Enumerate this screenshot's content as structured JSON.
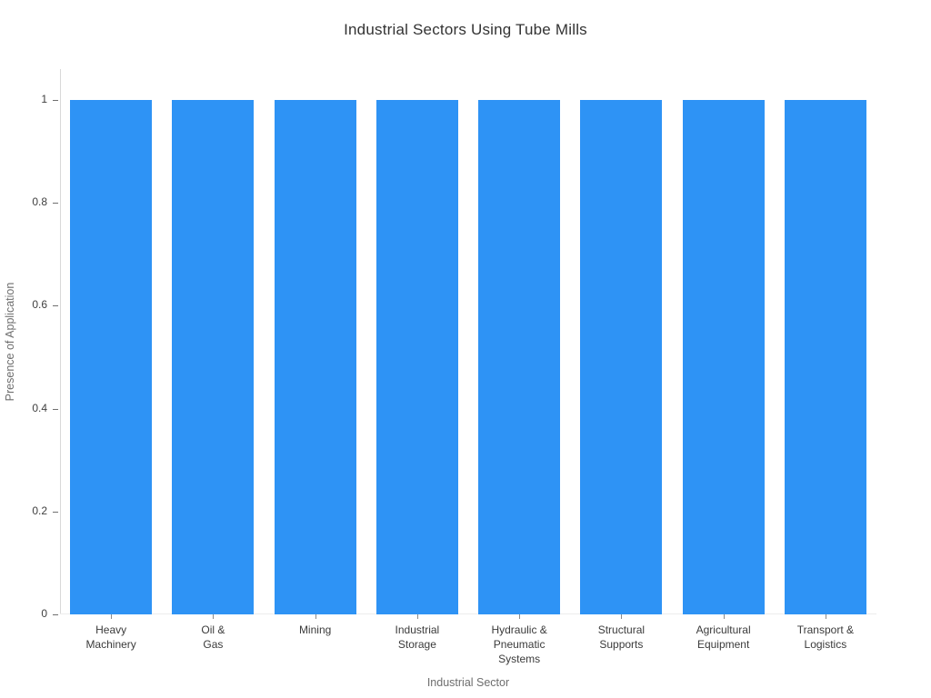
{
  "title": "Industrial Sectors Using Tube Mills",
  "chart_data": {
    "type": "bar",
    "title": "Industrial Sectors Using Tube Mills",
    "categories": [
      "Heavy\nMachinery",
      "Oil &\nGas",
      "Mining",
      "Industrial\nStorage",
      "Hydraulic &\nPneumatic\nSystems",
      "Structural\nSupports",
      "Agricultural\nEquipment",
      "Transport &\nLogistics"
    ],
    "categories_full": [
      "Heavy Machinery",
      "Oil & Gas",
      "Mining",
      "Industrial Storage",
      "Hydraulic & Pneumatic Systems",
      "Structural Supports",
      "Agricultural Equipment",
      "Transport & Logistics"
    ],
    "values": [
      1,
      1,
      1,
      1,
      1,
      1,
      1,
      1
    ],
    "xlabel": "Industrial Sector",
    "ylabel": "Presence of Application",
    "ylim": [
      0,
      1.06
    ],
    "yticks": [
      "0",
      "0.2",
      "0.4",
      "0.6",
      "0.8",
      "1"
    ],
    "ytick_values": [
      0,
      0.2,
      0.4,
      0.6,
      0.8,
      1
    ],
    "bar_color": "#2e93f5",
    "grid": false,
    "legend": "none",
    "background": "#ffffff"
  }
}
